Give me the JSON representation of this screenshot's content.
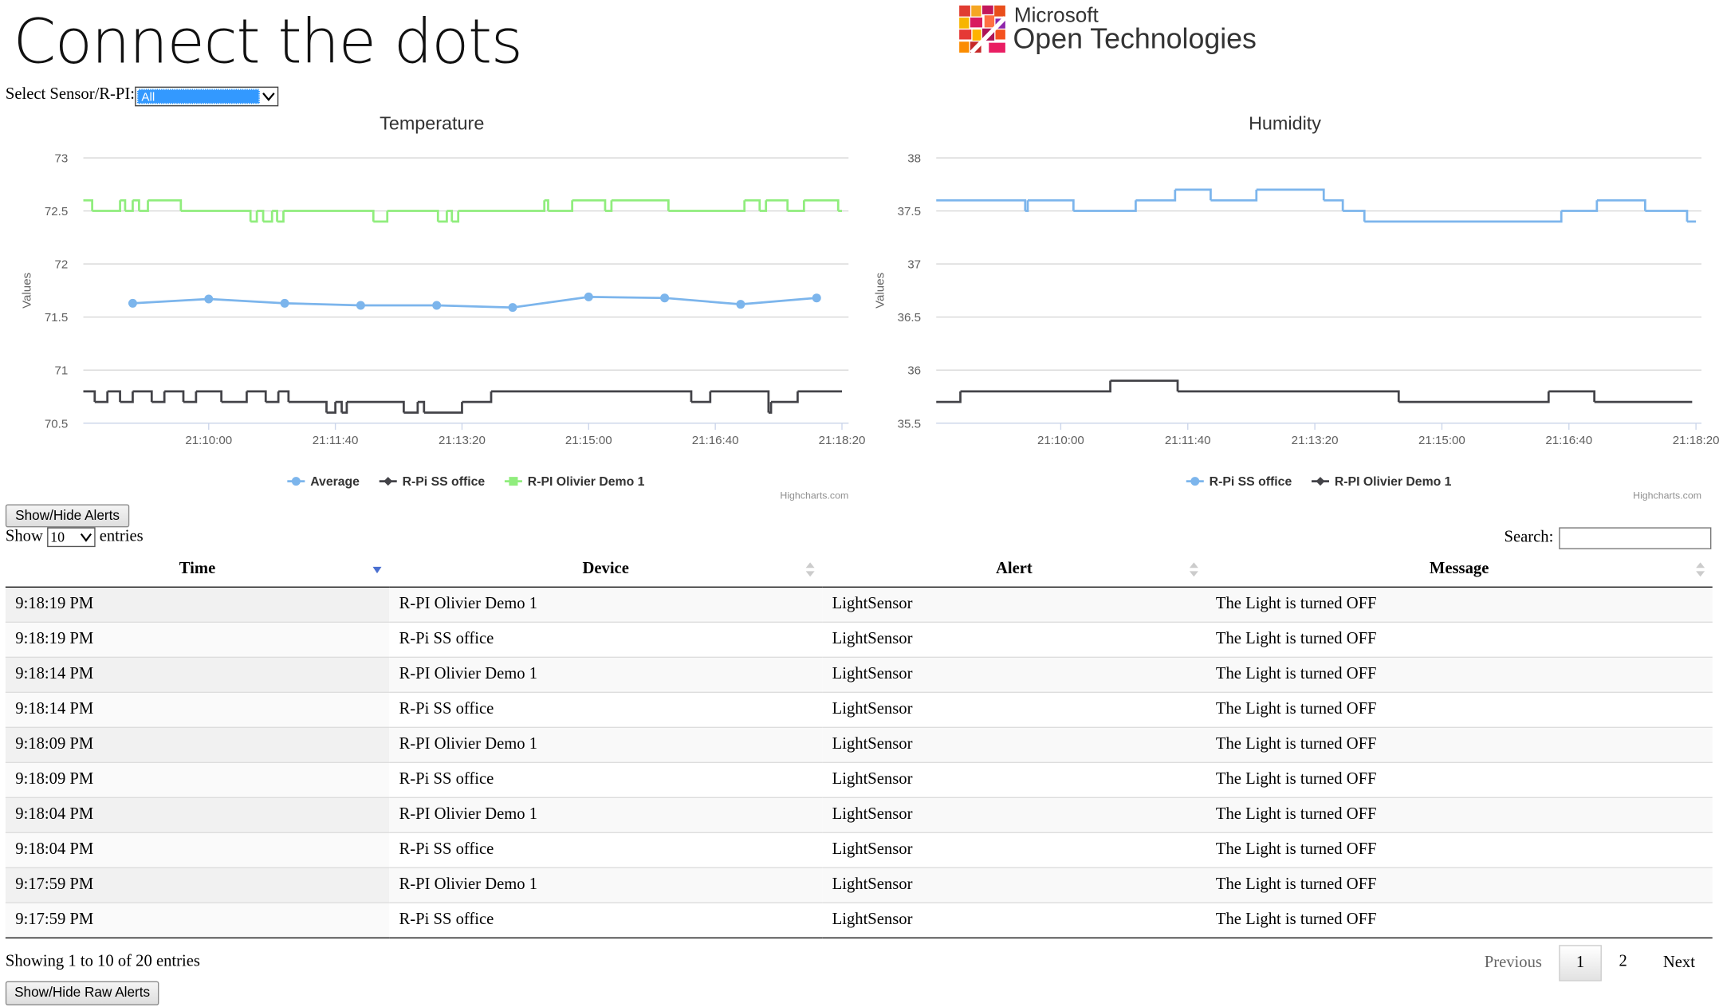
{
  "header": {
    "title": "Connect the dots",
    "logo": {
      "line1": "Microsoft",
      "line2": "Open Technologies"
    }
  },
  "sensor_select": {
    "label": "Select Sensor/R-PI:",
    "value": "All"
  },
  "chart_data": [
    {
      "type": "line",
      "title": "Temperature",
      "y_label": "Values",
      "credits": "Highcharts.com",
      "xlim": [
        "21:08:21",
        "21:18:20"
      ],
      "xticks": [
        "21:10:00",
        "21:11:40",
        "21:13:20",
        "21:15:00",
        "21:16:40",
        "21:18:20"
      ],
      "ylim": [
        70.5,
        73
      ],
      "yticks": [
        70.5,
        71,
        71.5,
        72,
        72.5,
        73
      ],
      "grid": true,
      "series": [
        {
          "name": "Average",
          "color": "#7cb5ec",
          "step": false,
          "markers": true,
          "x": [
            "21:09:00",
            "21:10:00",
            "21:11:00",
            "21:12:00",
            "21:13:00",
            "21:14:00",
            "21:15:00",
            "21:16:00",
            "21:17:00",
            "21:18:00"
          ],
          "values": [
            71.63,
            71.67,
            71.63,
            71.61,
            71.61,
            71.59,
            71.69,
            71.68,
            71.62,
            71.68
          ]
        },
        {
          "name": "R-Pi SS office",
          "color": "#434348",
          "step": true,
          "markers": false,
          "x": [
            "21:08:21",
            "21:08:30",
            "21:08:40",
            "21:08:50",
            "21:09:00",
            "21:09:15",
            "21:09:25",
            "21:09:40",
            "21:09:50",
            "21:10:10",
            "21:10:30",
            "21:10:45",
            "21:10:55",
            "21:11:03",
            "21:11:33",
            "21:11:40",
            "21:11:45",
            "21:11:49",
            "21:12:34",
            "21:12:45",
            "21:12:50",
            "21:13:20",
            "21:13:43",
            "21:16:21",
            "21:16:36",
            "21:17:22",
            "21:17:24",
            "21:17:45",
            "21:18:20"
          ],
          "values": [
            70.8,
            70.7,
            70.8,
            70.7,
            70.8,
            70.7,
            70.8,
            70.7,
            70.8,
            70.7,
            70.8,
            70.7,
            70.8,
            70.7,
            70.6,
            70.7,
            70.6,
            70.7,
            70.6,
            70.7,
            70.6,
            70.7,
            70.8,
            70.7,
            70.8,
            70.6,
            70.7,
            70.8,
            70.8
          ]
        },
        {
          "name": "R-PI Olivier Demo 1",
          "color": "#90ed7d",
          "step": true,
          "markers": false,
          "x": [
            "21:08:21",
            "21:08:28",
            "21:08:50",
            "21:08:54",
            "21:09:00",
            "21:09:05",
            "21:09:12",
            "21:09:38",
            "21:10:33",
            "21:10:38",
            "21:10:43",
            "21:10:50",
            "21:10:54",
            "21:10:59",
            "21:12:10",
            "21:12:21",
            "21:13:01",
            "21:13:08",
            "21:13:12",
            "21:13:17",
            "21:14:25",
            "21:14:28",
            "21:14:47",
            "21:15:13",
            "21:15:18",
            "21:16:03",
            "21:17:03",
            "21:17:15",
            "21:17:20",
            "21:17:37",
            "21:17:50",
            "21:18:17",
            "21:18:20"
          ],
          "values": [
            72.6,
            72.5,
            72.6,
            72.5,
            72.6,
            72.5,
            72.6,
            72.5,
            72.4,
            72.5,
            72.4,
            72.5,
            72.4,
            72.5,
            72.4,
            72.5,
            72.4,
            72.5,
            72.4,
            72.5,
            72.6,
            72.5,
            72.6,
            72.5,
            72.6,
            72.5,
            72.6,
            72.5,
            72.6,
            72.5,
            72.6,
            72.5,
            72.5
          ]
        }
      ]
    },
    {
      "type": "line",
      "title": "Humidity",
      "y_label": "Values",
      "credits": "Highcharts.com",
      "xlim": [
        "21:08:22",
        "21:18:20"
      ],
      "xticks": [
        "21:10:00",
        "21:11:40",
        "21:13:20",
        "21:15:00",
        "21:16:40",
        "21:18:20"
      ],
      "ylim": [
        35.5,
        38
      ],
      "yticks": [
        35.5,
        36,
        36.5,
        37,
        37.5,
        38
      ],
      "grid": true,
      "series": [
        {
          "name": "R-Pi SS office",
          "color": "#7cb5ec",
          "step": true,
          "markers": false,
          "x": [
            "21:08:22",
            "21:09:32",
            "21:09:34",
            "21:10:10",
            "21:10:59",
            "21:11:30",
            "21:11:58",
            "21:12:34",
            "21:13:27",
            "21:13:42",
            "21:13:59",
            "21:16:34",
            "21:17:02",
            "21:17:40",
            "21:18:13",
            "21:18:20"
          ],
          "values": [
            37.6,
            37.5,
            37.6,
            37.5,
            37.6,
            37.7,
            37.6,
            37.7,
            37.6,
            37.5,
            37.4,
            37.5,
            37.6,
            37.5,
            37.4,
            37.4
          ]
        },
        {
          "name": "R-PI Olivier Demo 1",
          "color": "#434348",
          "step": true,
          "markers": false,
          "x": [
            "21:08:22",
            "21:08:41",
            "21:10:39",
            "21:11:32",
            "21:14:26",
            "21:16:24",
            "21:17:00",
            "21:18:17"
          ],
          "values": [
            35.7,
            35.8,
            35.9,
            35.8,
            35.7,
            35.8,
            35.7,
            35.7
          ]
        }
      ]
    }
  ],
  "alerts_button": "Show/Hide Alerts",
  "table_controls": {
    "show": "Show",
    "length": "10",
    "entries": "entries",
    "search": "Search:"
  },
  "table": {
    "columns": [
      "Time",
      "Device",
      "Alert",
      "Message"
    ],
    "rows": [
      [
        "9:18:19 PM",
        "R-PI Olivier Demo 1",
        "LightSensor",
        "The Light is turned OFF"
      ],
      [
        "9:18:19 PM",
        "R-Pi SS office",
        "LightSensor",
        "The Light is turned OFF"
      ],
      [
        "9:18:14 PM",
        "R-PI Olivier Demo 1",
        "LightSensor",
        "The Light is turned OFF"
      ],
      [
        "9:18:14 PM",
        "R-Pi SS office",
        "LightSensor",
        "The Light is turned OFF"
      ],
      [
        "9:18:09 PM",
        "R-PI Olivier Demo 1",
        "LightSensor",
        "The Light is turned OFF"
      ],
      [
        "9:18:09 PM",
        "R-Pi SS office",
        "LightSensor",
        "The Light is turned OFF"
      ],
      [
        "9:18:04 PM",
        "R-PI Olivier Demo 1",
        "LightSensor",
        "The Light is turned OFF"
      ],
      [
        "9:18:04 PM",
        "R-Pi SS office",
        "LightSensor",
        "The Light is turned OFF"
      ],
      [
        "9:17:59 PM",
        "R-PI Olivier Demo 1",
        "LightSensor",
        "The Light is turned OFF"
      ],
      [
        "9:17:59 PM",
        "R-Pi SS office",
        "LightSensor",
        "The Light is turned OFF"
      ]
    ]
  },
  "table_info": "Showing 1 to 10 of 20 entries",
  "pagination": {
    "previous": "Previous",
    "pages": [
      "1",
      "2"
    ],
    "next": "Next"
  },
  "raw_alerts_button": "Show/Hide Raw Alerts"
}
